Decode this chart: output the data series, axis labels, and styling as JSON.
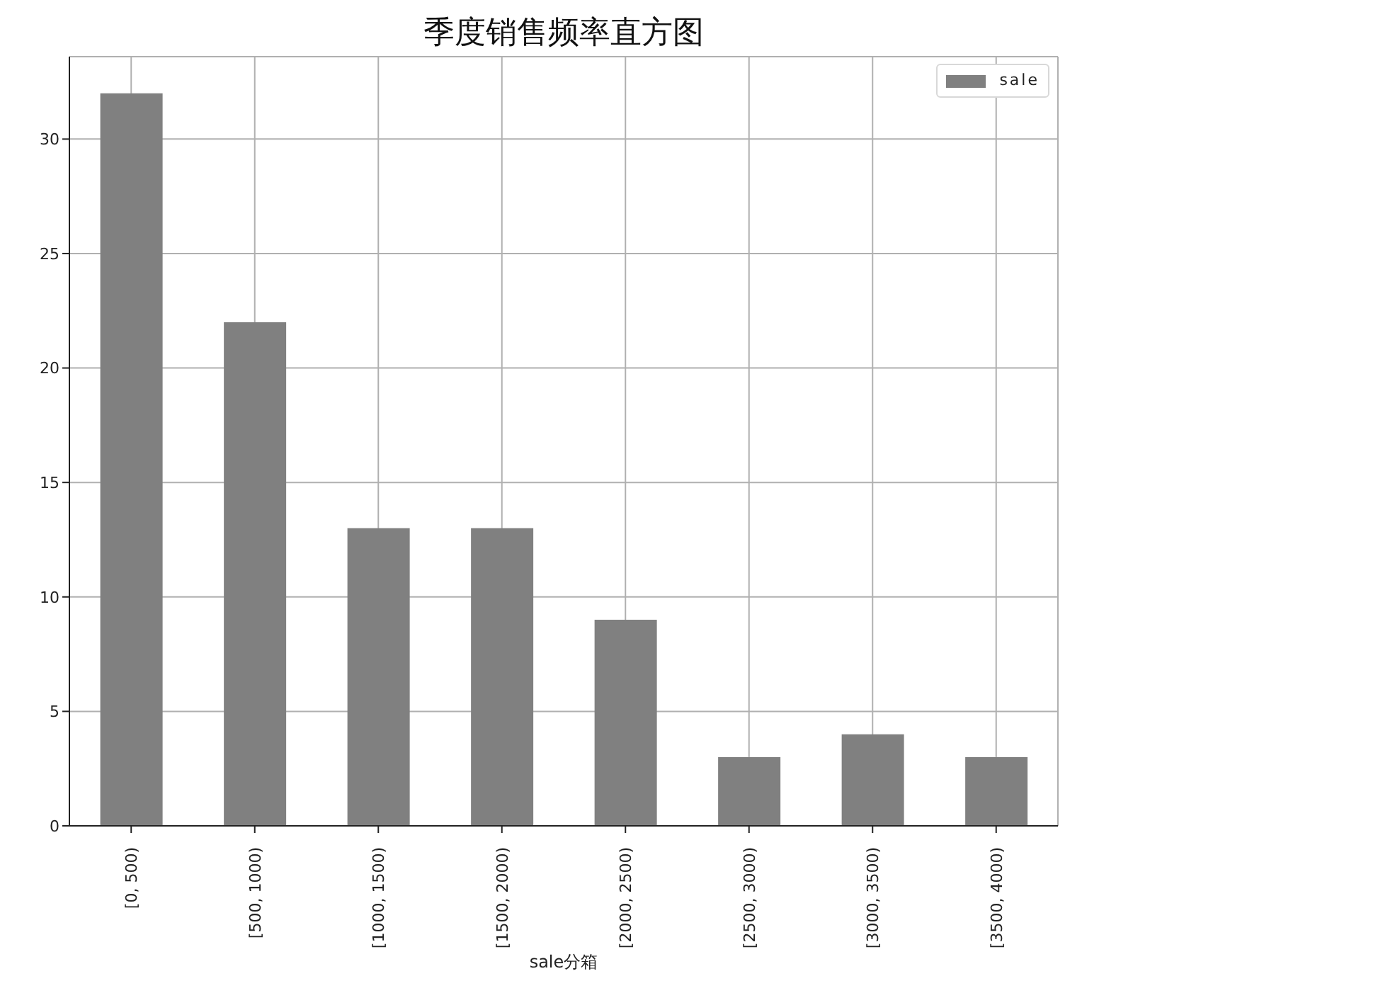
{
  "chart_data": {
    "type": "bar",
    "title": "季度销售频率直方图",
    "xlabel": "sale分箱",
    "categories": [
      "[0, 500)",
      "[500, 1000)",
      "[1000, 1500)",
      "[1500, 2000)",
      "[2000, 2500)",
      "[2500, 3000)",
      "[3000, 3500)",
      "[3500, 4000)"
    ],
    "series": [
      {
        "name": "sale",
        "color": "#808080",
        "values": [
          32,
          22,
          13,
          13,
          9,
          3,
          4,
          3
        ]
      }
    ],
    "ylim": [
      0,
      33.6
    ],
    "yticks": [
      0,
      5,
      10,
      15,
      20,
      25,
      30
    ],
    "grid": true,
    "legend": "top right"
  }
}
